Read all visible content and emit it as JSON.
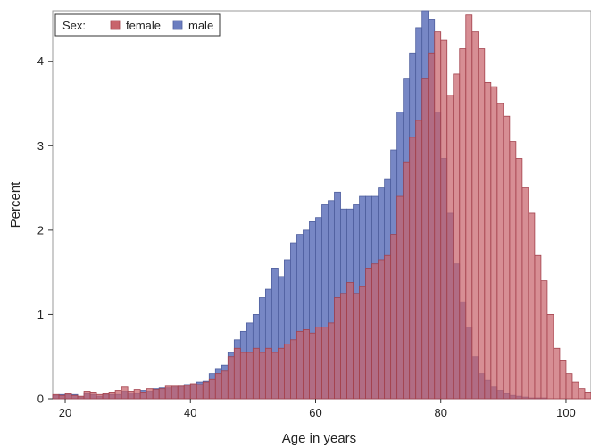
{
  "chart_data": {
    "type": "bar",
    "subtype": "overlaid-histogram",
    "title": "",
    "xlabel": "Age in years",
    "ylabel": "Percent",
    "xlim": [
      18,
      104
    ],
    "ylim": [
      0,
      4.6
    ],
    "xticks": [
      20,
      40,
      60,
      80,
      100
    ],
    "yticks": [
      0,
      1,
      2,
      3,
      4
    ],
    "bin_width": 1,
    "grid": false,
    "legend": {
      "title": "Sex:",
      "position": "top-left"
    },
    "series": [
      {
        "name": "male",
        "color": "#6b7dc0",
        "bins_start": 18,
        "values": [
          0.04,
          0.05,
          0.05,
          0.05,
          0.02,
          0.06,
          0.05,
          0.03,
          0.05,
          0.05,
          0.05,
          0.09,
          0.07,
          0.06,
          0.1,
          0.09,
          0.12,
          0.13,
          0.13,
          0.14,
          0.15,
          0.17,
          0.17,
          0.2,
          0.21,
          0.3,
          0.35,
          0.4,
          0.55,
          0.7,
          0.8,
          0.9,
          1.0,
          1.2,
          1.3,
          1.55,
          1.45,
          1.65,
          1.85,
          1.95,
          2.0,
          2.1,
          2.15,
          2.3,
          2.35,
          2.45,
          2.25,
          2.25,
          2.3,
          2.4,
          2.4,
          2.4,
          2.5,
          2.6,
          2.95,
          3.4,
          3.8,
          4.1,
          4.4,
          4.7,
          4.5,
          3.4,
          2.85,
          2.2,
          1.6,
          1.15,
          0.85,
          0.5,
          0.3,
          0.22,
          0.14,
          0.1,
          0.06,
          0.04,
          0.03,
          0.02,
          0.01,
          0.01,
          0.01,
          0.0,
          0.0,
          0.0,
          0.0,
          0.0,
          0.0,
          0.0
        ]
      },
      {
        "name": "female",
        "color": "#c8636b",
        "bins_start": 18,
        "values": [
          0.05,
          0.04,
          0.06,
          0.04,
          0.03,
          0.09,
          0.08,
          0.05,
          0.06,
          0.08,
          0.1,
          0.14,
          0.09,
          0.11,
          0.08,
          0.12,
          0.11,
          0.12,
          0.15,
          0.15,
          0.15,
          0.16,
          0.18,
          0.17,
          0.2,
          0.23,
          0.3,
          0.33,
          0.5,
          0.6,
          0.55,
          0.55,
          0.6,
          0.55,
          0.6,
          0.55,
          0.6,
          0.65,
          0.7,
          0.8,
          0.82,
          0.78,
          0.85,
          0.85,
          0.9,
          1.2,
          1.25,
          1.38,
          1.25,
          1.33,
          1.55,
          1.6,
          1.65,
          1.7,
          1.95,
          2.4,
          2.8,
          3.1,
          3.3,
          3.8,
          4.1,
          4.35,
          4.25,
          3.6,
          3.85,
          4.15,
          4.55,
          4.35,
          4.15,
          3.75,
          3.7,
          3.5,
          3.35,
          3.05,
          2.85,
          2.5,
          2.2,
          1.7,
          1.4,
          1.0,
          0.6,
          0.45,
          0.3,
          0.2,
          0.12,
          0.08
        ]
      }
    ]
  }
}
